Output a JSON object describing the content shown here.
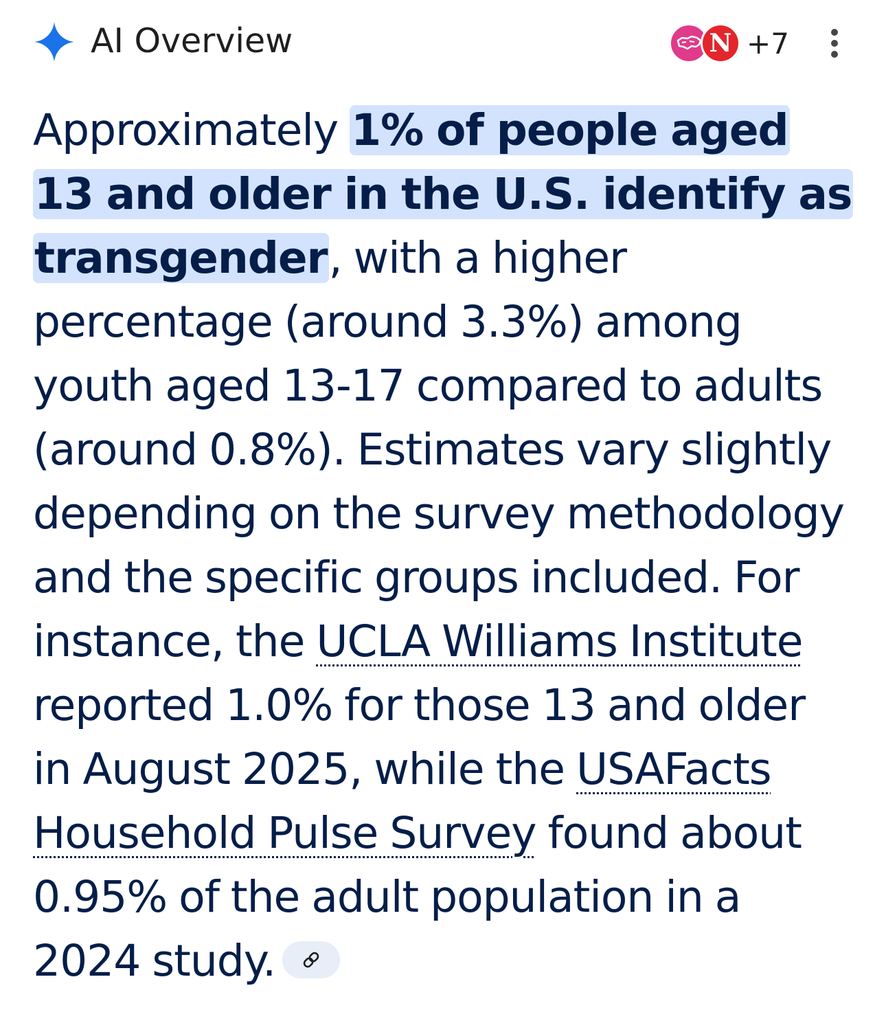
{
  "header": {
    "title": "AI Overview",
    "sparkle_icon": "sparkle-icon",
    "sources": {
      "avatars": [
        {
          "name": "map-outline-logo",
          "color": "#e03a8a"
        },
        {
          "name": "n-logo",
          "letter": "N",
          "color": "#e3262c"
        }
      ],
      "more_count": "+7"
    },
    "more_icon": "more-vert-icon"
  },
  "answer": {
    "intro": "Approximately ",
    "highlight": "1% of people aged 13 and older in the U.S. identify as transgender",
    "part2": ", with a higher percentage (around 3.3%) among youth aged 13-17 compared to adults (around 0.8%). Estimates vary slightly depending on the survey methodology and the specific groups included. For instance, the ",
    "link1": "UCLA Williams Institute",
    "part3": " reported 1.0% for those 13 and older in August 2025, while the ",
    "link2": "USAFacts Household Pulse Survey",
    "part4": " found about 0.95% of the adult population in a 2024 study.",
    "link_chip_icon": "link-icon"
  },
  "colors": {
    "accent_blue": "#1a73e8",
    "highlight_bg": "#d3e3fd",
    "text": "#041e49",
    "chip_bg": "#e8eef7"
  }
}
